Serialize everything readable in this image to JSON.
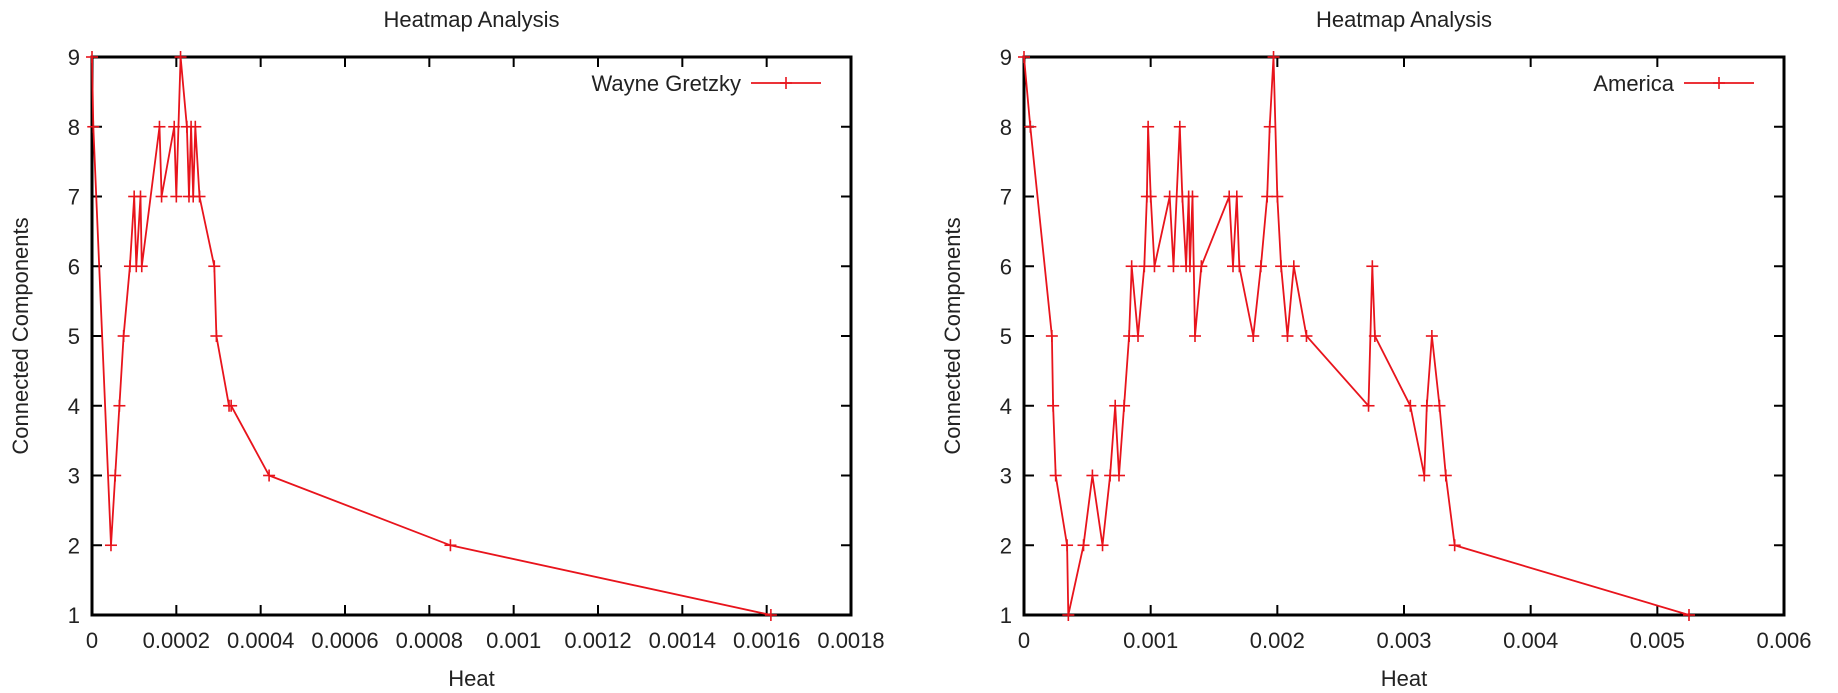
{
  "colors": {
    "series": "#e8141c",
    "axis": "#000000",
    "text": "#222222"
  },
  "chart_data": [
    {
      "type": "line",
      "title": "Heatmap Analysis",
      "xlabel": "Heat",
      "ylabel": "Connected Components",
      "xlim": [
        0,
        0.0018
      ],
      "ylim": [
        1,
        9
      ],
      "xticks": [
        0,
        0.0002,
        0.0004,
        0.0006,
        0.0008,
        0.001,
        0.0012,
        0.0014,
        0.0016,
        0.0018
      ],
      "xtick_labels": [
        "0",
        "0.0002",
        "0.0004",
        "0.0006",
        "0.0008",
        "0.001",
        "0.0012",
        "0.0014",
        "0.0016",
        "0.0018"
      ],
      "yticks": [
        1,
        2,
        3,
        4,
        5,
        6,
        7,
        8,
        9
      ],
      "ytick_labels": [
        "1",
        "2",
        "3",
        "4",
        "5",
        "6",
        "7",
        "8",
        "9"
      ],
      "legend_position": "top-right",
      "grid": false,
      "series": [
        {
          "name": "Wayne Gretzky",
          "x": [
            0,
            3e-06,
            4.5e-05,
            5.5e-05,
            6.5e-05,
            7.5e-05,
            9e-05,
            0.0001,
            0.000105,
            0.000115,
            0.000118,
            0.00016,
            0.000165,
            0.000195,
            0.0002,
            0.00021,
            0.000225,
            0.00023,
            0.000235,
            0.00024,
            0.000245,
            0.000255,
            0.00029,
            0.000295,
            0.000325,
            0.00033,
            0.00042,
            0.00085,
            0.00161
          ],
          "y": [
            9,
            8,
            2,
            3,
            4,
            5,
            6,
            7,
            6,
            7,
            6,
            8,
            7,
            8,
            7,
            9,
            8,
            7,
            8,
            7,
            8,
            7,
            6,
            5,
            4,
            4,
            3,
            2,
            1
          ]
        }
      ]
    },
    {
      "type": "line",
      "title": "Heatmap Analysis",
      "xlabel": "Heat",
      "ylabel": "Connected Components",
      "xlim": [
        0,
        0.006
      ],
      "ylim": [
        1,
        9
      ],
      "xticks": [
        0,
        0.001,
        0.002,
        0.003,
        0.004,
        0.005,
        0.006
      ],
      "xtick_labels": [
        "0",
        "0.001",
        "0.002",
        "0.003",
        "0.004",
        "0.005",
        "0.006"
      ],
      "yticks": [
        1,
        2,
        3,
        4,
        5,
        6,
        7,
        8,
        9
      ],
      "ytick_labels": [
        "1",
        "2",
        "3",
        "4",
        "5",
        "6",
        "7",
        "8",
        "9"
      ],
      "legend_position": "top-right",
      "grid": false,
      "series": [
        {
          "name": "America",
          "x": [
            0,
            5e-05,
            0.00022,
            0.00023,
            0.00025,
            0.00034,
            0.00035,
            0.00047,
            0.00054,
            0.00062,
            0.00068,
            0.00072,
            0.00075,
            0.00079,
            0.00083,
            0.00085,
            0.0009,
            0.00095,
            0.00097,
            0.00098,
            0.001,
            0.00103,
            0.00115,
            0.00118,
            0.00123,
            0.00125,
            0.00128,
            0.0013,
            0.00131,
            0.00133,
            0.00135,
            0.0014,
            0.00162,
            0.00165,
            0.00168,
            0.0017,
            0.00181,
            0.00187,
            0.00192,
            0.00194,
            0.00197,
            0.002,
            0.00203,
            0.00208,
            0.00213,
            0.00223,
            0.00272,
            0.00275,
            0.00277,
            0.00305,
            0.00316,
            0.00318,
            0.00322,
            0.00328,
            0.00333,
            0.0034,
            0.00525
          ],
          "y": [
            9,
            8,
            5,
            4,
            3,
            2,
            1,
            2,
            3,
            2,
            3,
            4,
            3,
            4,
            5,
            6,
            5,
            6,
            7,
            8,
            7,
            6,
            7,
            6,
            8,
            7,
            6,
            7,
            6,
            7,
            5,
            6,
            7,
            6,
            7,
            6,
            5,
            6,
            7,
            8,
            9,
            7,
            6,
            5,
            6,
            5,
            4,
            6,
            5,
            4,
            3,
            4,
            5,
            4,
            3,
            2,
            1
          ]
        }
      ]
    }
  ]
}
